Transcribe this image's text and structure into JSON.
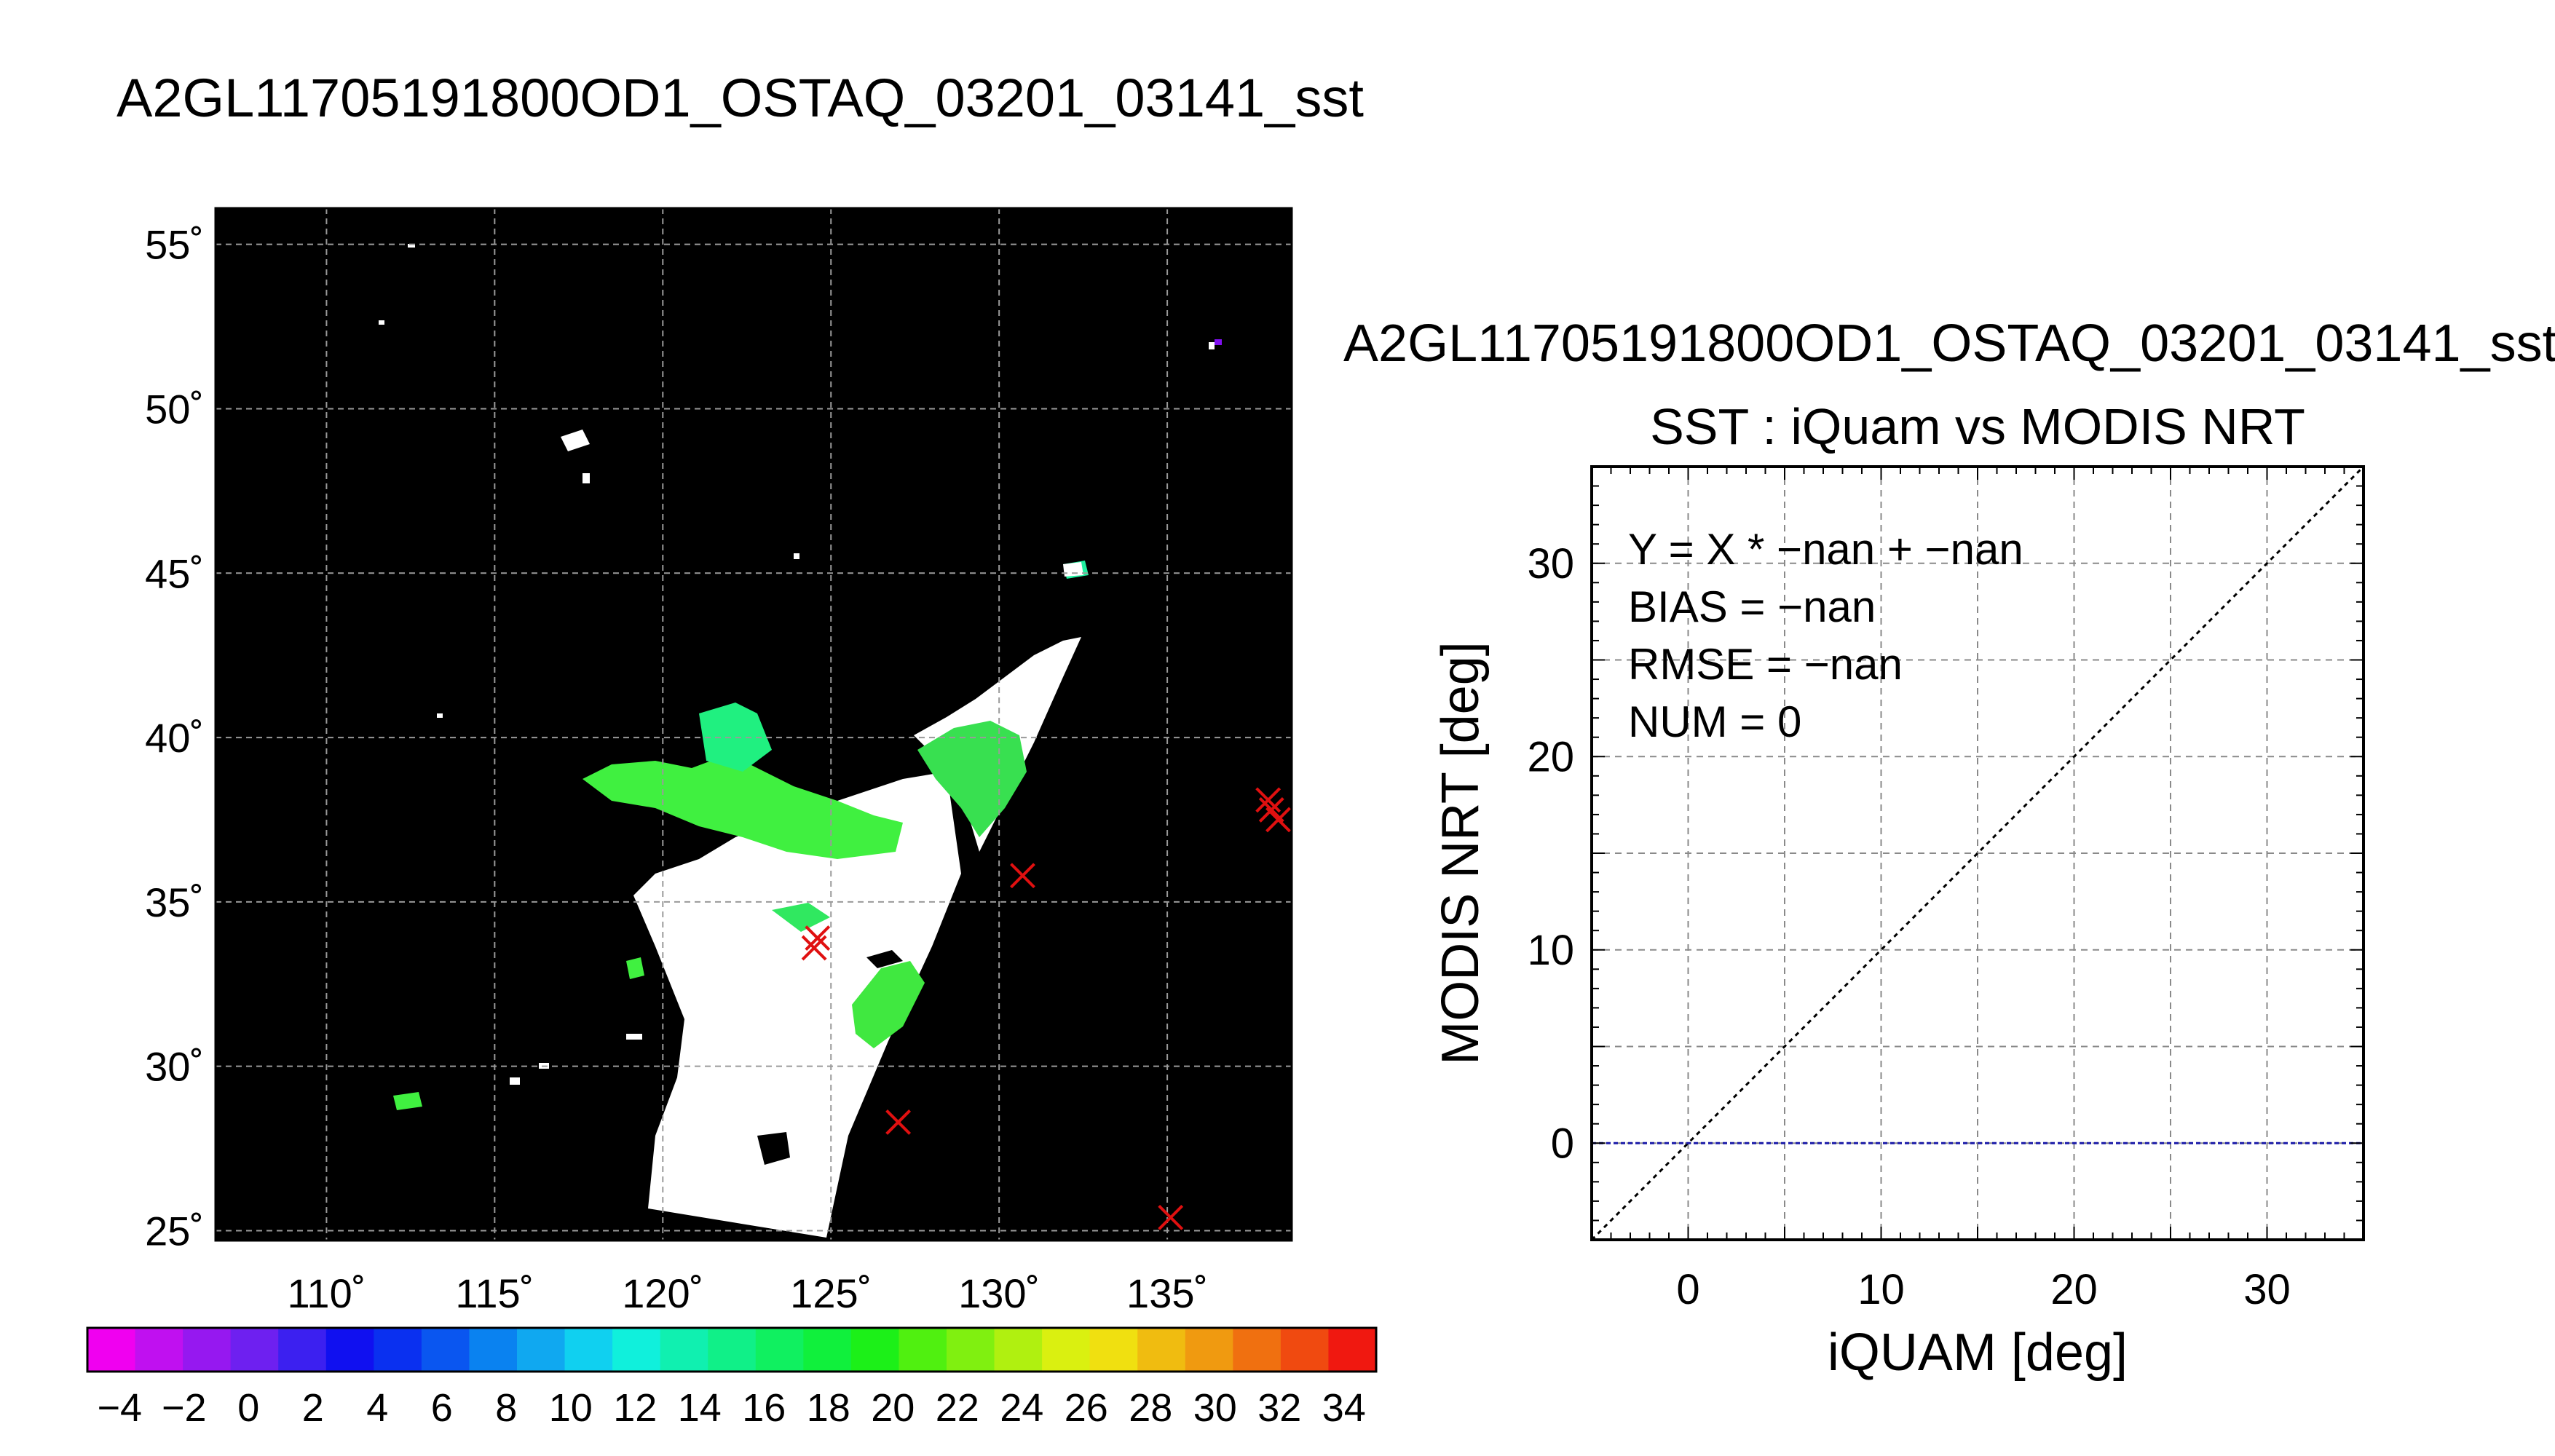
{
  "map_title": "A2GL11705191800OD1_OSTAQ_03201_03141_sst",
  "scatter_title": "A2GL11705191800OD1_OSTAQ_03201_03141_sst",
  "colors": {
    "land_cloud": "#000000",
    "ocean_valid": "#ffffff",
    "marker": "#e01010",
    "identity_line": "#000000",
    "zero_line": "#1a1aa8"
  },
  "chart_data": [
    {
      "type": "heatmap",
      "title": "A2GL11705191800OD1_OSTAQ_03201_03141_sst",
      "x_ticks": [
        {
          "v": 110,
          "label": "110˚"
        },
        {
          "v": 115,
          "label": "115˚"
        },
        {
          "v": 120,
          "label": "120˚"
        },
        {
          "v": 125,
          "label": "125˚"
        },
        {
          "v": 130,
          "label": "130˚"
        },
        {
          "v": 135,
          "label": "135˚"
        }
      ],
      "y_ticks": [
        {
          "v": 25,
          "label": "25˚"
        },
        {
          "v": 30,
          "label": "30˚"
        },
        {
          "v": 35,
          "label": "35˚"
        },
        {
          "v": 40,
          "label": "40˚"
        },
        {
          "v": 45,
          "label": "45˚"
        },
        {
          "v": 50,
          "label": "50˚"
        },
        {
          "v": 55,
          "label": "55˚"
        }
      ],
      "xlim": [
        106.7,
        138.7
      ],
      "ylim": [
        24.7,
        56.1
      ],
      "grid": true,
      "markers": [
        {
          "lon": 124.6,
          "lat": 33.9
        },
        {
          "lon": 124.5,
          "lat": 33.6
        },
        {
          "lon": 127.0,
          "lat": 28.3
        },
        {
          "lon": 130.7,
          "lat": 35.8
        },
        {
          "lon": 135.1,
          "lat": 25.4
        },
        {
          "lon": 138.0,
          "lat": 38.1
        },
        {
          "lon": 138.1,
          "lat": 37.8
        },
        {
          "lon": 138.3,
          "lat": 37.5
        }
      ],
      "colorbar": {
        "min": -5,
        "max": 35,
        "tick_labels": [
          {
            "v": -4,
            "label": "−4"
          },
          {
            "v": -2,
            "label": "−2"
          },
          {
            "v": 0,
            "label": "0"
          },
          {
            "v": 2,
            "label": "2"
          },
          {
            "v": 4,
            "label": "4"
          },
          {
            "v": 6,
            "label": "6"
          },
          {
            "v": 8,
            "label": "8"
          },
          {
            "v": 10,
            "label": "10"
          },
          {
            "v": 12,
            "label": "12"
          },
          {
            "v": 14,
            "label": "14"
          },
          {
            "v": 16,
            "label": "16"
          },
          {
            "v": 18,
            "label": "18"
          },
          {
            "v": 20,
            "label": "20"
          },
          {
            "v": 22,
            "label": "22"
          },
          {
            "v": 24,
            "label": "24"
          },
          {
            "v": 26,
            "label": "26"
          },
          {
            "v": 28,
            "label": "28"
          },
          {
            "v": 30,
            "label": "30"
          },
          {
            "v": 32,
            "label": "32"
          },
          {
            "v": 34,
            "label": "34"
          }
        ],
        "colors": [
          "#f000f0",
          "#c010f0",
          "#9618f0",
          "#6e20f0",
          "#3c20f0",
          "#1010f0",
          "#0a30f0",
          "#0a56f0",
          "#0a82f0",
          "#10a8f0",
          "#10d0f0",
          "#10f0dc",
          "#10f0b0",
          "#10f088",
          "#10f060",
          "#10f03c",
          "#1cf018",
          "#50f010",
          "#80f010",
          "#b0f010",
          "#daf010",
          "#f0e010",
          "#f0bc10",
          "#f09a10",
          "#f07010",
          "#f04a10",
          "#f01810"
        ]
      }
    },
    {
      "type": "scatter",
      "title": "SST : iQuam vs MODIS NRT",
      "xlabel": "iQUAM [deg]",
      "ylabel": "MODIS NRT [deg]",
      "xlim": [
        -5,
        35
      ],
      "ylim": [
        -5,
        35
      ],
      "x_ticks": [
        0,
        10,
        20,
        30
      ],
      "y_ticks": [
        0,
        10,
        20,
        30
      ],
      "grid": true,
      "points": [],
      "lines": [
        {
          "kind": "identity",
          "from": [
            -5,
            -5
          ],
          "to": [
            35,
            35
          ]
        },
        {
          "kind": "horizontal",
          "y": 0
        }
      ],
      "annotations": [
        "Y = X * −nan + −nan",
        "BIAS = −nan",
        "RMSE = −nan",
        "NUM = 0"
      ]
    }
  ]
}
